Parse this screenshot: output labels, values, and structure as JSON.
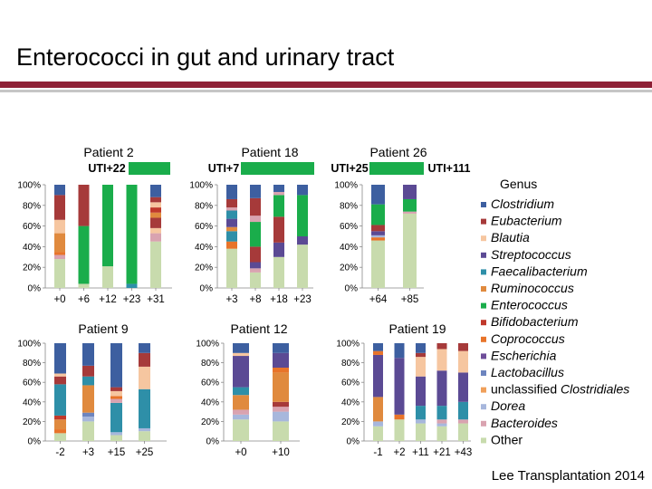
{
  "slide": {
    "title": "Enterococci in gut and urinary tract",
    "citation": "Lee Transplantation 2014"
  },
  "colors": {
    "rule": "#8e2035",
    "Clostridium": "#3d5fa0",
    "Eubacterium": "#a63a3a",
    "Blautia": "#f6c6a0",
    "Streptococcus": "#5b4a94",
    "Faecalibacterium": "#2e8fa8",
    "Ruminococcus": "#e08a3e",
    "Enterococcus": "#1aad4b",
    "Bifidobacterium": "#c0392b",
    "Coprococcus": "#e8742a",
    "Escherichia": "#6e4d99",
    "Lactobacillus": "#6d85bf",
    "unclassified Clostridiales": "#f0a05a",
    "Dorea": "#a7b7dc",
    "Bacteroides": "#d9a3b0",
    "Other": "#c8dbad",
    "uti_bar": "#1aad4b"
  },
  "chart_data": {
    "type": "bar",
    "stacked": true,
    "ylim": [
      0,
      100
    ],
    "ytick_labels": [
      "0%",
      "20%",
      "40%",
      "60%",
      "80%",
      "100%"
    ],
    "legend": {
      "title": "Genus",
      "placement": "right",
      "entries": [
        {
          "label": "Clostridium",
          "italic": true
        },
        {
          "label": "Eubacterium",
          "italic": true
        },
        {
          "label": "Blautia",
          "italic": true
        },
        {
          "label": "Streptococcus",
          "italic": true
        },
        {
          "label": "Faecalibacterium",
          "italic": true
        },
        {
          "label": "Ruminococcus",
          "italic": true
        },
        {
          "label": "Enterococcus",
          "italic": true
        },
        {
          "label": "Bifidobacterium",
          "italic": true
        },
        {
          "label": "Coprococcus",
          "italic": true
        },
        {
          "label": "Escherichia",
          "italic": true
        },
        {
          "label": "Lactobacillus",
          "italic": true
        },
        {
          "label": "unclassified Clostridiales",
          "italic": false,
          "italic_part": "Clostridiales"
        },
        {
          "label": "Dorea",
          "italic": true
        },
        {
          "label": "Bacteroides",
          "italic": true
        },
        {
          "label": "Other",
          "italic": false
        }
      ]
    },
    "panels": [
      {
        "name": "Patient 2",
        "uti_labels": [
          "UTI+22"
        ],
        "categories": [
          "+0",
          "+6",
          "+12",
          "+23",
          "+31"
        ],
        "bars": [
          [
            [
              "Other",
              28
            ],
            [
              "Bacteroides",
              4
            ],
            [
              "Coprococcus",
              3
            ],
            [
              "Ruminococcus",
              18
            ],
            [
              "Blautia",
              13
            ],
            [
              "Eubacterium",
              24
            ],
            [
              "Clostridium",
              10
            ]
          ],
          [
            [
              "Other",
              4
            ],
            [
              "Enterococcus",
              56
            ],
            [
              "Eubacterium",
              40
            ]
          ],
          [
            [
              "Other",
              21
            ],
            [
              "Enterococcus",
              79
            ]
          ],
          [
            [
              "Faecalibacterium",
              4
            ],
            [
              "Enterococcus",
              96
            ]
          ],
          [
            [
              "Other",
              45
            ],
            [
              "Bacteroides",
              8
            ],
            [
              "Blautia",
              5
            ],
            [
              "Eubacterium",
              10
            ],
            [
              "Ruminococcus",
              5
            ],
            [
              "Bifidobacterium",
              5
            ],
            [
              "Blautia",
              5
            ],
            [
              "Eubacterium",
              5
            ],
            [
              "Clostridium",
              12
            ]
          ]
        ]
      },
      {
        "name": "Patient 18",
        "uti_labels": [
          "UTI+7"
        ],
        "categories": [
          "+3",
          "+8",
          "+18",
          "+23"
        ],
        "bars": [
          [
            [
              "Other",
              38
            ],
            [
              "Coprococcus",
              7
            ],
            [
              "Faecalibacterium",
              10
            ],
            [
              "Ruminococcus",
              4
            ],
            [
              "Streptococcus",
              8
            ],
            [
              "Faecalibacterium",
              8
            ],
            [
              "Bacteroides",
              3
            ],
            [
              "Eubacterium",
              8
            ],
            [
              "Clostridium",
              14
            ]
          ],
          [
            [
              "Other",
              15
            ],
            [
              "Bacteroides",
              4
            ],
            [
              "Streptococcus",
              6
            ],
            [
              "Eubacterium",
              15
            ],
            [
              "Enterococcus",
              24
            ],
            [
              "Bacteroides",
              6
            ],
            [
              "Eubacterium",
              17
            ],
            [
              "Clostridium",
              13
            ]
          ],
          [
            [
              "Other",
              30
            ],
            [
              "Streptococcus",
              14
            ],
            [
              "Eubacterium",
              25
            ],
            [
              "Enterococcus",
              21
            ],
            [
              "Bacteroides",
              3
            ],
            [
              "Clostridium",
              7
            ]
          ],
          [
            [
              "Other",
              42
            ],
            [
              "Streptococcus",
              8
            ],
            [
              "Enterococcus",
              40
            ],
            [
              "Clostridium",
              10
            ]
          ]
        ]
      },
      {
        "name": "Patient 26",
        "uti_labels": [
          "UTI+25",
          "UTI+111"
        ],
        "categories": [
          "+64",
          "+85"
        ],
        "bars": [
          [
            [
              "Other",
              46
            ],
            [
              "Coprococcus",
              3
            ],
            [
              "Dorea",
              2
            ],
            [
              "Streptococcus",
              4
            ],
            [
              "Eubacterium",
              6
            ],
            [
              "Enterococcus",
              20
            ],
            [
              "Clostridium",
              19
            ]
          ],
          [
            [
              "Other",
              72
            ],
            [
              "Bacteroides",
              2
            ],
            [
              "Enterococcus",
              12
            ],
            [
              "Streptococcus",
              14
            ]
          ]
        ]
      },
      {
        "name": "Patient 9",
        "uti_labels": [],
        "categories": [
          "-2",
          "+3",
          "+15",
          "+25"
        ],
        "bars": [
          [
            [
              "Other",
              8
            ],
            [
              "Coprococcus",
              4
            ],
            [
              "Ruminococcus",
              10
            ],
            [
              "Bifidobacterium",
              4
            ],
            [
              "Faecalibacterium",
              32
            ],
            [
              "Eubacterium",
              8
            ],
            [
              "Blautia",
              3
            ],
            [
              "Clostridium",
              31
            ]
          ],
          [
            [
              "Other",
              20
            ],
            [
              "Dorea",
              5
            ],
            [
              "Lactobacillus",
              4
            ],
            [
              "Ruminococcus",
              28
            ],
            [
              "Faecalibacterium",
              9
            ],
            [
              "Eubacterium",
              11
            ],
            [
              "Clostridium",
              23
            ]
          ],
          [
            [
              "Other",
              6
            ],
            [
              "Dorea",
              3
            ],
            [
              "Faecalibacterium",
              30
            ],
            [
              "Bacteroides",
              4
            ],
            [
              "Coprococcus",
              3
            ],
            [
              "Blautia",
              5
            ],
            [
              "Eubacterium",
              4
            ],
            [
              "Clostridium",
              45
            ]
          ],
          [
            [
              "Other",
              10
            ],
            [
              "Dorea",
              3
            ],
            [
              "Faecalibacterium",
              40
            ],
            [
              "Blautia",
              23
            ],
            [
              "Eubacterium",
              14
            ],
            [
              "Clostridium",
              10
            ]
          ]
        ]
      },
      {
        "name": "Patient 12",
        "uti_labels": [],
        "categories": [
          "+0",
          "+10"
        ],
        "bars": [
          [
            [
              "Other",
              22
            ],
            [
              "Dorea",
              5
            ],
            [
              "Bacteroides",
              5
            ],
            [
              "Ruminococcus",
              15
            ],
            [
              "Faecalibacterium",
              8
            ],
            [
              "Streptococcus",
              32
            ],
            [
              "Blautia",
              3
            ],
            [
              "Clostridium",
              10
            ]
          ],
          [
            [
              "Other",
              20
            ],
            [
              "Dorea",
              10
            ],
            [
              "Bacteroides",
              5
            ],
            [
              "Eubacterium",
              5
            ],
            [
              "Ruminococcus",
              30
            ],
            [
              "Coprococcus",
              5
            ],
            [
              "Streptococcus",
              15
            ],
            [
              "Clostridium",
              10
            ]
          ]
        ]
      },
      {
        "name": "Patient 19",
        "uti_labels": [],
        "categories": [
          "-1",
          "+2",
          "+11",
          "+21",
          "+43"
        ],
        "bars": [
          [
            [
              "Other",
              15
            ],
            [
              "Dorea",
              5
            ],
            [
              "Ruminococcus",
              25
            ],
            [
              "Streptococcus",
              43
            ],
            [
              "Coprococcus",
              4
            ],
            [
              "Clostridium",
              8
            ]
          ],
          [
            [
              "Other",
              22
            ],
            [
              "Coprococcus",
              5
            ],
            [
              "Streptococcus",
              58
            ],
            [
              "Clostridium",
              15
            ]
          ],
          [
            [
              "Other",
              18
            ],
            [
              "Dorea",
              4
            ],
            [
              "Faecalibacterium",
              14
            ],
            [
              "Streptococcus",
              30
            ],
            [
              "Blautia",
              20
            ],
            [
              "Eubacterium",
              4
            ],
            [
              "Clostridium",
              10
            ]
          ],
          [
            [
              "Other",
              15
            ],
            [
              "Dorea",
              3
            ],
            [
              "Bacteroides",
              4
            ],
            [
              "Faecalibacterium",
              14
            ],
            [
              "Streptococcus",
              36
            ],
            [
              "Blautia",
              22
            ],
            [
              "Eubacterium",
              6
            ]
          ],
          [
            [
              "Other",
              18
            ],
            [
              "Bacteroides",
              4
            ],
            [
              "Faecalibacterium",
              18
            ],
            [
              "Streptococcus",
              30
            ],
            [
              "Blautia",
              22
            ],
            [
              "Eubacterium",
              8
            ]
          ]
        ]
      }
    ]
  }
}
